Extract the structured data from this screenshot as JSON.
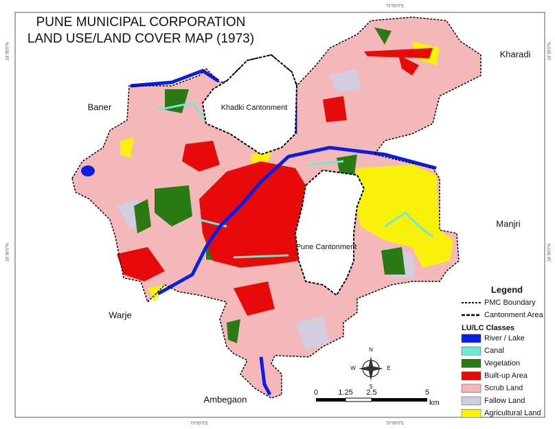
{
  "title": [
    "PUNE MUNICIPAL CORPORATION",
    "LAND USE/LAND COVER MAP (1973)"
  ],
  "graticule": {
    "top": [
      "73°55'0\"E"
    ],
    "bottom": [
      "73°50'0\"E",
      "73°55'0\"E"
    ],
    "left": [
      "18°35'0\"N",
      "18°30'0\"N"
    ],
    "right": [
      "18°35'0\"N",
      "18°30'0\"N"
    ]
  },
  "places": [
    "Kharadi",
    "Baner",
    "Khadki Cantonment",
    "Manjri",
    "Pune Cantonment",
    "Warje",
    "Ambegaon"
  ],
  "legend": {
    "title": "Legend",
    "boundaries": [
      "PMC Boundary",
      "Cantonment Area"
    ],
    "classes_title": "LU/LC Classes",
    "classes": [
      {
        "label": "River / Lake",
        "color": "#0a1ee6"
      },
      {
        "label": "Canal",
        "color": "#6fe8d8"
      },
      {
        "label": "Vegetation",
        "color": "#2a7a14"
      },
      {
        "label": "Built-up Area",
        "color": "#e60a0a"
      },
      {
        "label": "Scrub Land",
        "color": "#f5b8b8"
      },
      {
        "label": "Fallow Land",
        "color": "#d2cde0"
      },
      {
        "label": "Agricultural Land",
        "color": "#f8f20a"
      }
    ]
  },
  "scale": {
    "ticks": [
      "0",
      "1.25",
      "2.5",
      "5"
    ],
    "unit": "km"
  },
  "compass": {
    "n": "N",
    "e": "E",
    "s": "S",
    "w": "W"
  }
}
